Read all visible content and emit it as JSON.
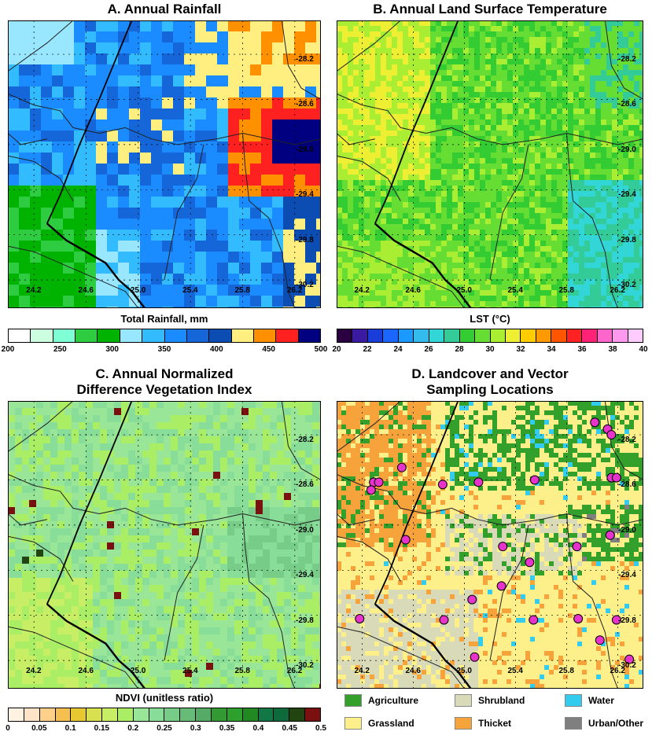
{
  "panels": {
    "a": {
      "title": "A. Annual Rainfall",
      "colorbar_label": "Total Rainfall, mm",
      "colorbar_ticks": [
        "200",
        "250",
        "300",
        "350",
        "400",
        "450",
        "500"
      ],
      "colorbar_colors": [
        "#ffffff",
        "#ccffe0",
        "#7fffd4",
        "#2ecc40",
        "#00b300",
        "#99e6ff",
        "#33bbff",
        "#1a8cff",
        "#1466d9",
        "#0b4db3",
        "#ffef80",
        "#ff9000",
        "#ff2020",
        "#000080"
      ]
    },
    "b": {
      "title": "B. Annual Land Surface Temperature",
      "colorbar_label": "LST (°C)",
      "colorbar_ticks": [
        "20",
        "22",
        "24",
        "26",
        "28",
        "30",
        "32",
        "34",
        "36",
        "38",
        "40"
      ],
      "colorbar_colors": [
        "#2a0040",
        "#3a1aa0",
        "#1a3cd9",
        "#1a66ff",
        "#1a99ff",
        "#33bbee",
        "#33d6d6",
        "#33cc99",
        "#33cc33",
        "#66dd33",
        "#aaee33",
        "#eeee33",
        "#ffcc00",
        "#ff9900",
        "#ff5500",
        "#ff2222",
        "#ff2277",
        "#ff66cc",
        "#ff99ee",
        "#ffccff"
      ]
    },
    "c": {
      "title_line1": "C. Annual Normalized",
      "title_line2": "Difference Vegetation Index",
      "colorbar_label": "NDVI (unitless ratio)",
      "colorbar_ticks": [
        "0",
        "0.05",
        "0.1",
        "0.15",
        "0.2",
        "0.25",
        "0.3",
        "0.35",
        "0.4",
        "0.45",
        "0.5"
      ],
      "colorbar_colors": [
        "#fff2e0",
        "#ffe3c8",
        "#ffd08a",
        "#f5c050",
        "#e8c830",
        "#d8e050",
        "#c8ee66",
        "#aaee66",
        "#99e699",
        "#88dd99",
        "#77cc88",
        "#66bb77",
        "#55aa66",
        "#339933",
        "#2ea02e",
        "#228822",
        "#117744",
        "#0e6a3a",
        "#224411",
        "#7a1010"
      ]
    },
    "d": {
      "title_line1": "D. Landcover and Vector",
      "title_line2": "Sampling Locations",
      "legend": [
        {
          "label": "Agriculture",
          "color": "#33a02c"
        },
        {
          "label": "Shrubland",
          "color": "#d9dab8"
        },
        {
          "label": "Water",
          "color": "#33ccee"
        },
        {
          "label": "Grassland",
          "color": "#fdf08a"
        },
        {
          "label": "Thicket",
          "color": "#f5a33a"
        },
        {
          "label": "Urban/Other",
          "color": "#7f7f7f"
        }
      ],
      "sampling_points": [
        [
          26.02,
          -28.09
        ],
        [
          26.12,
          -28.15
        ],
        [
          26.15,
          -28.2
        ],
        [
          26.15,
          -28.58
        ],
        [
          26.19,
          -28.58
        ],
        [
          24.51,
          -28.49
        ],
        [
          24.29,
          -28.62
        ],
        [
          24.33,
          -28.62
        ],
        [
          24.27,
          -28.69
        ],
        [
          24.83,
          -28.64
        ],
        [
          25.11,
          -28.62
        ],
        [
          25.55,
          -28.6
        ],
        [
          24.54,
          -29.13
        ],
        [
          25.3,
          -29.19
        ],
        [
          25.51,
          -29.33
        ],
        [
          25.88,
          -29.19
        ],
        [
          26.14,
          -29.09
        ],
        [
          25.29,
          -29.54
        ],
        [
          25.06,
          -29.66
        ],
        [
          24.18,
          -29.83
        ],
        [
          24.84,
          -29.84
        ],
        [
          25.54,
          -29.84
        ],
        [
          25.89,
          -29.83
        ],
        [
          26.19,
          -29.84
        ],
        [
          26.06,
          -30.02
        ],
        [
          25.08,
          -30.17
        ],
        [
          26.29,
          -30.19
        ]
      ]
    }
  },
  "map_extent": {
    "lon": [
      24.0,
      26.4
    ],
    "lat": [
      -30.45,
      -27.9
    ]
  },
  "x_ticks": [
    "24.2",
    "24.6",
    "25.0",
    "25.4",
    "25.8",
    "26.2"
  ],
  "y_ticks": [
    "-28.2",
    "-28.6",
    "-29.0",
    "-29.4",
    "-29.8",
    "-30.2"
  ]
}
